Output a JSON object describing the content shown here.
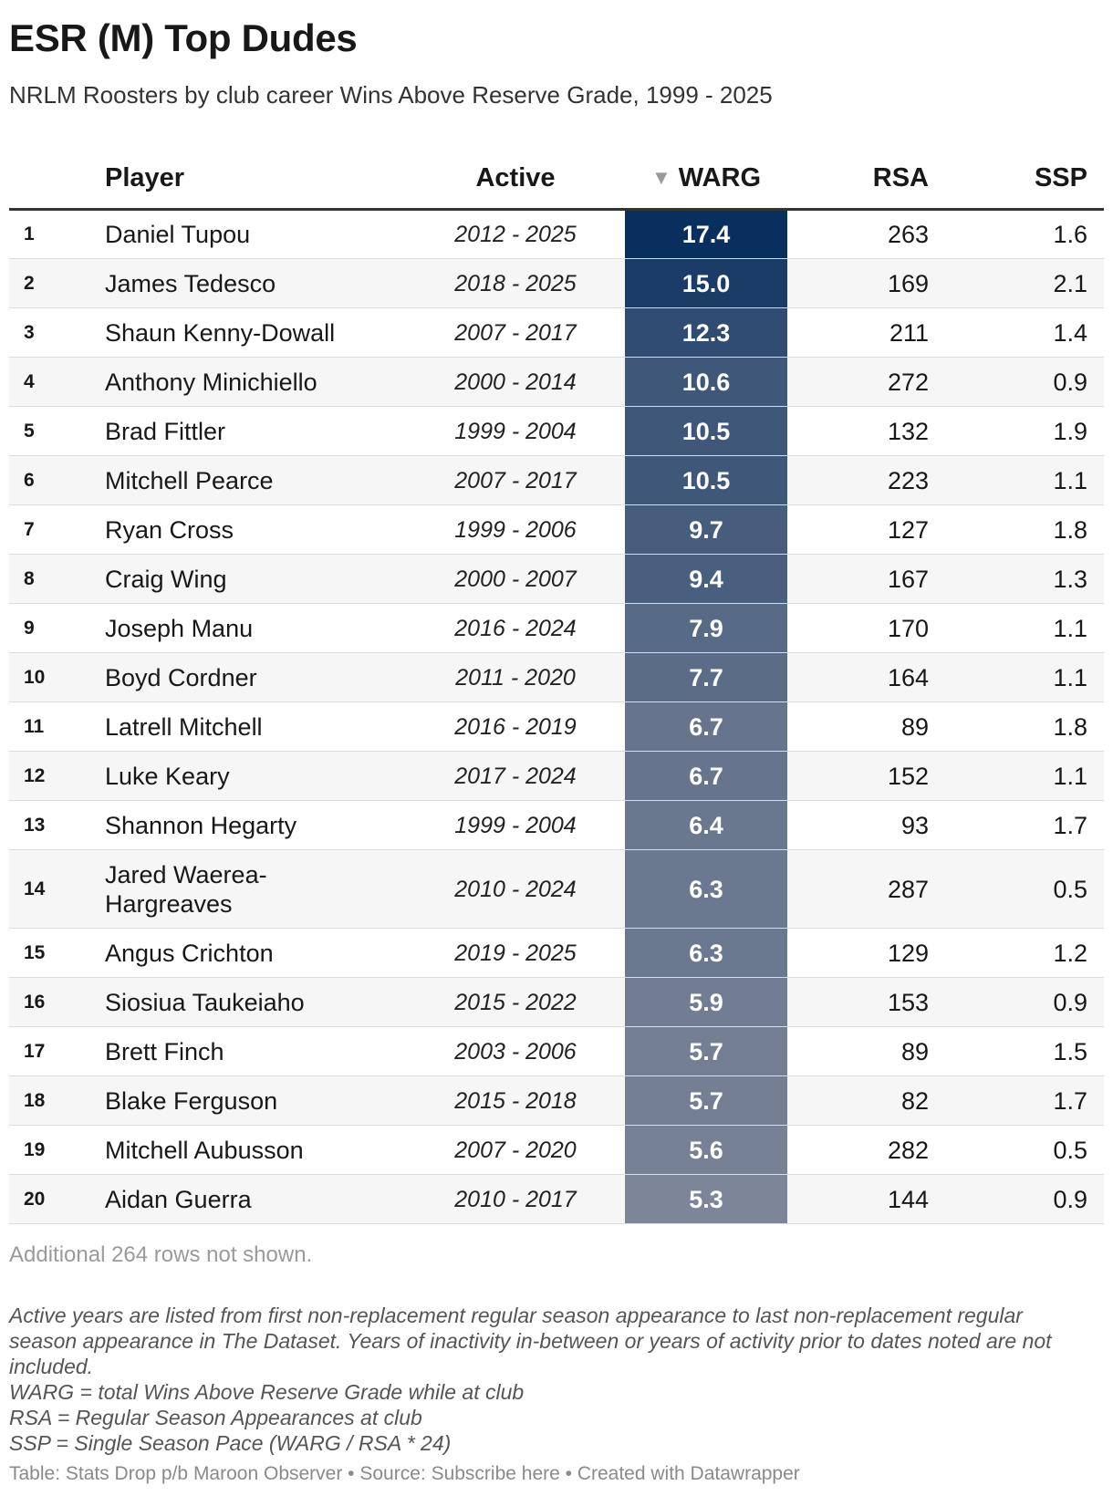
{
  "title": "ESR (M) Top Dudes",
  "subtitle": "NRLM Roosters by club career Wins Above Reserve Grade, 1999 - 2025",
  "columns": {
    "rank": "",
    "player": "Player",
    "active": "Active",
    "warg": "WARG",
    "rsa": "RSA",
    "ssp": "SSP"
  },
  "sort_icon": "sort-down-icon",
  "colors": {
    "warg_dark": "#092f5e",
    "warg_light": "#7d8699"
  },
  "chart_data": {
    "type": "table",
    "rows": [
      {
        "rank": "1",
        "player": "Daniel Tupou",
        "active": "2012 - 2025",
        "warg": "17.4",
        "rsa": "263",
        "ssp": "1.6"
      },
      {
        "rank": "2",
        "player": "James Tedesco",
        "active": "2018 - 2025",
        "warg": "15.0",
        "rsa": "169",
        "ssp": "2.1"
      },
      {
        "rank": "3",
        "player": "Shaun Kenny-Dowall",
        "active": "2007 - 2017",
        "warg": "12.3",
        "rsa": "211",
        "ssp": "1.4"
      },
      {
        "rank": "4",
        "player": "Anthony Minichiello",
        "active": "2000 - 2014",
        "warg": "10.6",
        "rsa": "272",
        "ssp": "0.9"
      },
      {
        "rank": "5",
        "player": "Brad Fittler",
        "active": "1999 - 2004",
        "warg": "10.5",
        "rsa": "132",
        "ssp": "1.9"
      },
      {
        "rank": "6",
        "player": "Mitchell Pearce",
        "active": "2007 - 2017",
        "warg": "10.5",
        "rsa": "223",
        "ssp": "1.1"
      },
      {
        "rank": "7",
        "player": "Ryan Cross",
        "active": "1999 - 2006",
        "warg": "9.7",
        "rsa": "127",
        "ssp": "1.8"
      },
      {
        "rank": "8",
        "player": "Craig Wing",
        "active": "2000 - 2007",
        "warg": "9.4",
        "rsa": "167",
        "ssp": "1.3"
      },
      {
        "rank": "9",
        "player": "Joseph Manu",
        "active": "2016 - 2024",
        "warg": "7.9",
        "rsa": "170",
        "ssp": "1.1"
      },
      {
        "rank": "10",
        "player": "Boyd Cordner",
        "active": "2011 - 2020",
        "warg": "7.7",
        "rsa": "164",
        "ssp": "1.1"
      },
      {
        "rank": "11",
        "player": "Latrell Mitchell",
        "active": "2016 - 2019",
        "warg": "6.7",
        "rsa": "89",
        "ssp": "1.8"
      },
      {
        "rank": "12",
        "player": "Luke Keary",
        "active": "2017 - 2024",
        "warg": "6.7",
        "rsa": "152",
        "ssp": "1.1"
      },
      {
        "rank": "13",
        "player": "Shannon Hegarty",
        "active": "1999 - 2004",
        "warg": "6.4",
        "rsa": "93",
        "ssp": "1.7"
      },
      {
        "rank": "14",
        "player": "Jared Waerea-Hargreaves",
        "active": "2010 - 2024",
        "warg": "6.3",
        "rsa": "287",
        "ssp": "0.5"
      },
      {
        "rank": "15",
        "player": "Angus Crichton",
        "active": "2019 - 2025",
        "warg": "6.3",
        "rsa": "129",
        "ssp": "1.2"
      },
      {
        "rank": "16",
        "player": "Siosiua Taukeiaho",
        "active": "2015 - 2022",
        "warg": "5.9",
        "rsa": "153",
        "ssp": "0.9"
      },
      {
        "rank": "17",
        "player": "Brett Finch",
        "active": "2003 - 2006",
        "warg": "5.7",
        "rsa": "89",
        "ssp": "1.5"
      },
      {
        "rank": "18",
        "player": "Blake Ferguson",
        "active": "2015 - 2018",
        "warg": "5.7",
        "rsa": "82",
        "ssp": "1.7"
      },
      {
        "rank": "19",
        "player": "Mitchell Aubusson",
        "active": "2007 - 2020",
        "warg": "5.6",
        "rsa": "282",
        "ssp": "0.5"
      },
      {
        "rank": "20",
        "player": "Aidan Guerra",
        "active": "2010 - 2017",
        "warg": "5.3",
        "rsa": "144",
        "ssp": "0.9"
      }
    ]
  },
  "rows_note": "Additional 264 rows not shown.",
  "notes": [
    "Active years are listed from first non-replacement regular season appearance to last non-replacement regular season appearance in The Dataset. Years of inactivity in-between or years of activity prior to dates noted are not included.",
    "WARG = total Wins Above Reserve Grade while at club",
    "RSA = Regular Season Appearances at club",
    "SSP = Single Season Pace (WARG / RSA * 24)"
  ],
  "footer": "Table: Stats Drop p/b Maroon Observer • Source: Subscribe here • Created with Datawrapper"
}
